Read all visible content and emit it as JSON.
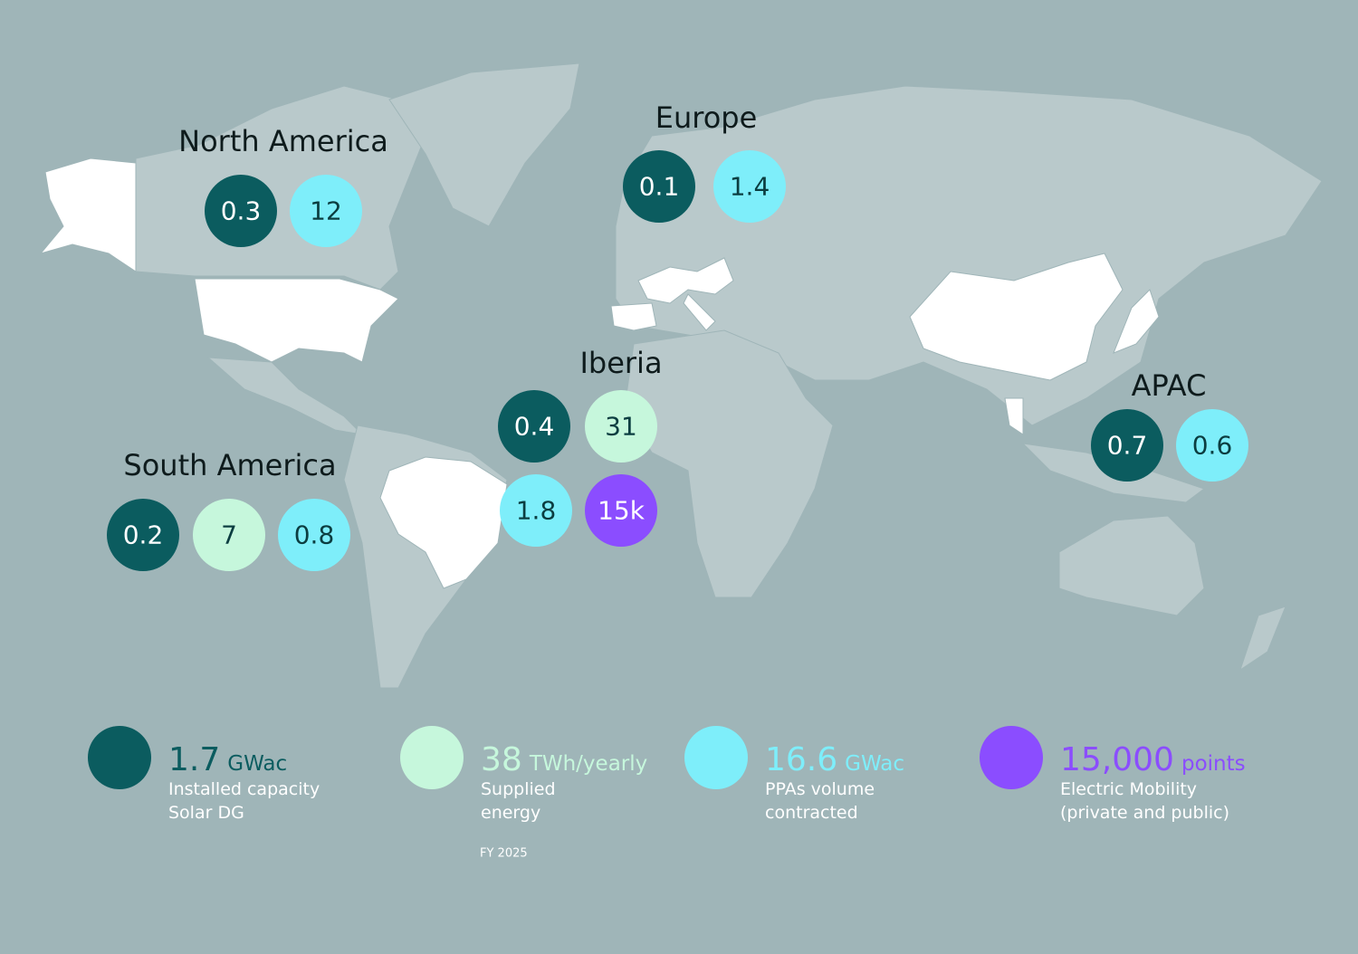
{
  "regions": [
    {
      "name": "North America",
      "bubbles": [
        {
          "value": "0.3",
          "color": "#0b5c5f",
          "text_color": "#ffffff"
        },
        {
          "value": "12",
          "color": "#7eeefa",
          "text_color": "#0b3d40"
        }
      ]
    },
    {
      "name": "Europe",
      "bubbles": [
        {
          "value": "0.1",
          "color": "#0b5c5f",
          "text_color": "#ffffff"
        },
        {
          "value": "1.4",
          "color": "#7eeefa",
          "text_color": "#0b3d40"
        }
      ]
    },
    {
      "name": "Iberia",
      "bubbles": [
        {
          "value": "0.4",
          "color": "#0b5c5f",
          "text_color": "#ffffff"
        },
        {
          "value": "31",
          "color": "#c6f7dc",
          "text_color": "#0b3d40"
        },
        {
          "value": "1.8",
          "color": "#7eeefa",
          "text_color": "#0b3d40"
        },
        {
          "value": "15k",
          "color": "#8b4dff",
          "text_color": "#ffffff"
        }
      ]
    },
    {
      "name": "South America",
      "bubbles": [
        {
          "value": "0.2",
          "color": "#0b5c5f",
          "text_color": "#ffffff"
        },
        {
          "value": "7",
          "color": "#c6f7dc",
          "text_color": "#0b3d40"
        },
        {
          "value": "0.8",
          "color": "#7eeefa",
          "text_color": "#0b3d40"
        }
      ]
    },
    {
      "name": "APAC",
      "bubbles": [
        {
          "value": "0.7",
          "color": "#0b5c5f",
          "text_color": "#ffffff"
        },
        {
          "value": "0.6",
          "color": "#7eeefa",
          "text_color": "#0b3d40"
        }
      ]
    }
  ],
  "legend": [
    {
      "value": "1.7",
      "unit": "GWac",
      "description": [
        "Installed capacity",
        "Solar DG"
      ],
      "color": "#0b5c5f"
    },
    {
      "value": "38",
      "unit": "TWh/yearly",
      "description": [
        "Supplied",
        "energy"
      ],
      "color": "#c6f7dc"
    },
    {
      "value": "16.6",
      "unit": "GWac",
      "description": [
        "PPAs volume",
        "contracted"
      ],
      "color": "#7eeefa"
    },
    {
      "value": "15,000",
      "unit": "points",
      "description": [
        "Electric Mobility",
        "(private and public)"
      ],
      "color": "#8b4dff"
    }
  ],
  "footer": "FY 2025"
}
